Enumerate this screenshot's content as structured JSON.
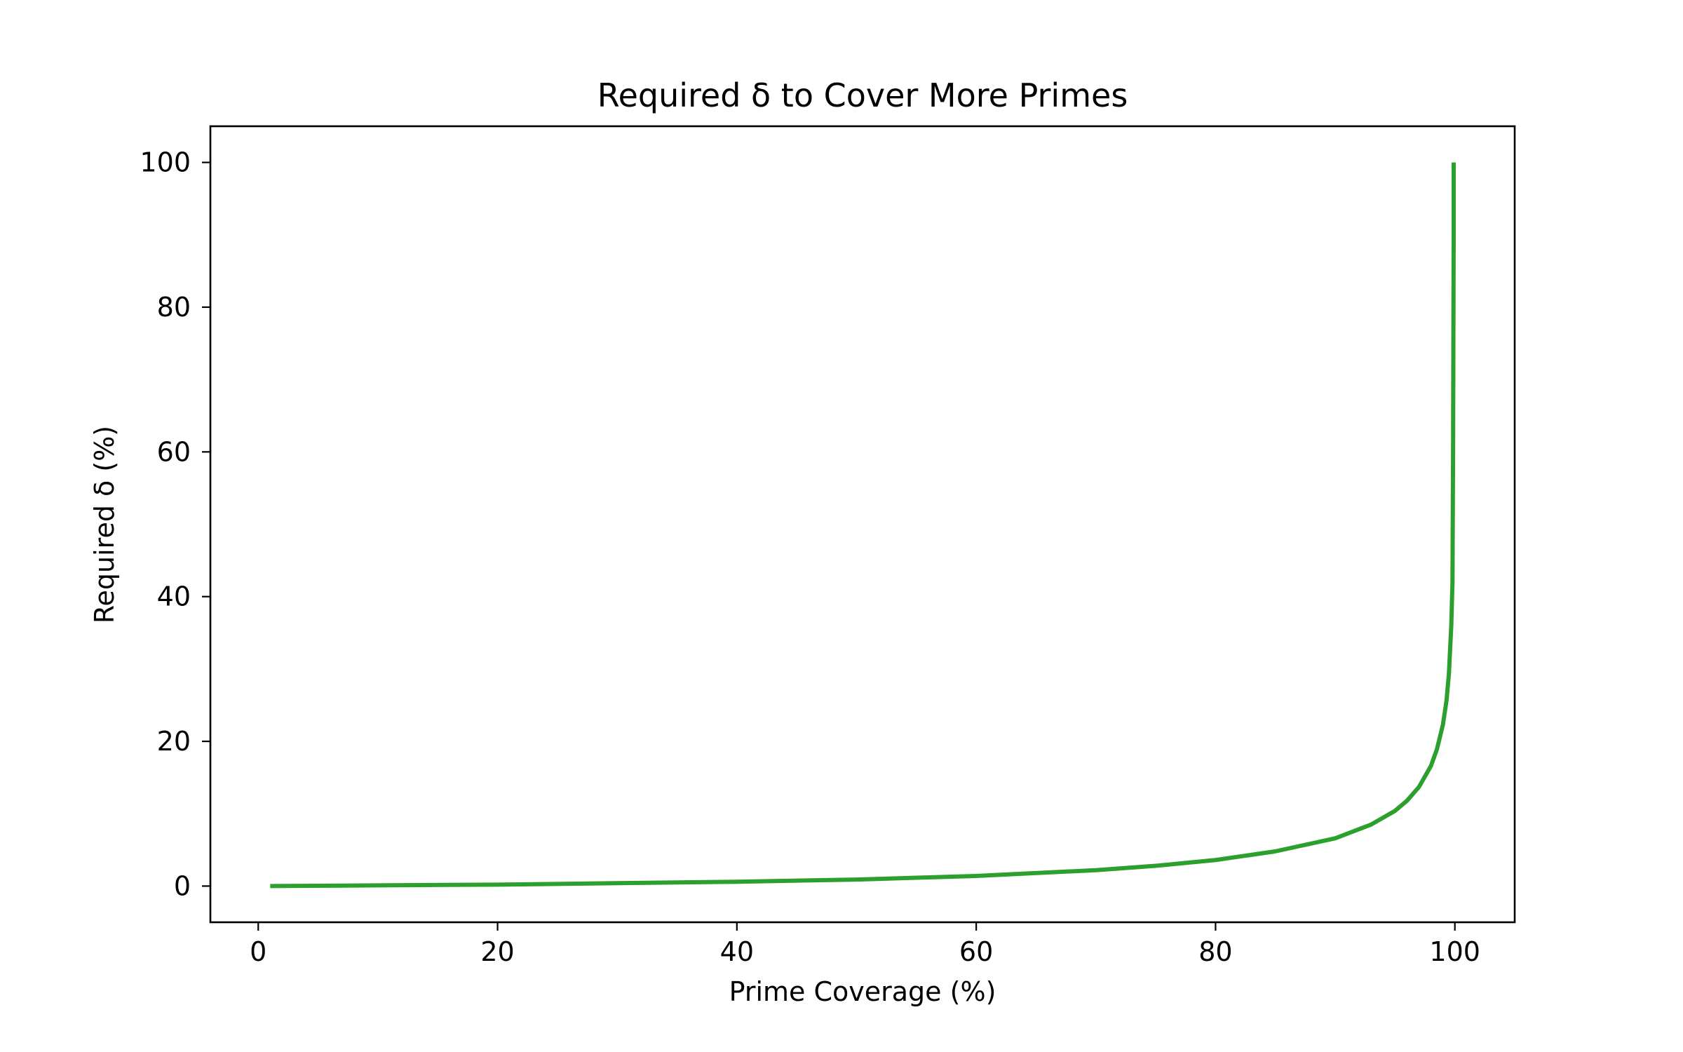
{
  "chart_data": {
    "type": "line",
    "title": "Required δ to Cover More Primes",
    "xlabel": "Prime Coverage (%)",
    "ylabel": "Required δ (%)",
    "xlim": [
      -4,
      105
    ],
    "ylim": [
      -5,
      105
    ],
    "xticks": [
      0,
      20,
      40,
      60,
      80,
      100
    ],
    "yticks": [
      0,
      20,
      40,
      60,
      80,
      100
    ],
    "xtick_labels": [
      "0",
      "20",
      "40",
      "60",
      "80",
      "100"
    ],
    "ytick_labels": [
      "0",
      "20",
      "40",
      "60",
      "80",
      "100"
    ],
    "grid": false,
    "series": [
      {
        "color": "#2ca02c",
        "x": [
          1,
          10,
          20,
          30,
          40,
          50,
          60,
          70,
          75,
          80,
          85,
          90,
          93,
          95,
          96,
          97,
          98,
          98.5,
          99,
          99.3,
          99.5,
          99.7,
          99.8,
          99.85,
          99.9,
          99.9
        ],
        "y": [
          0,
          0.1,
          0.2,
          0.4,
          0.6,
          0.9,
          1.4,
          2.2,
          2.8,
          3.6,
          4.8,
          6.6,
          8.5,
          10.4,
          11.8,
          13.7,
          16.6,
          18.9,
          22.3,
          25.6,
          29.3,
          36.0,
          42.0,
          60.0,
          90.0,
          100.0
        ]
      }
    ]
  }
}
